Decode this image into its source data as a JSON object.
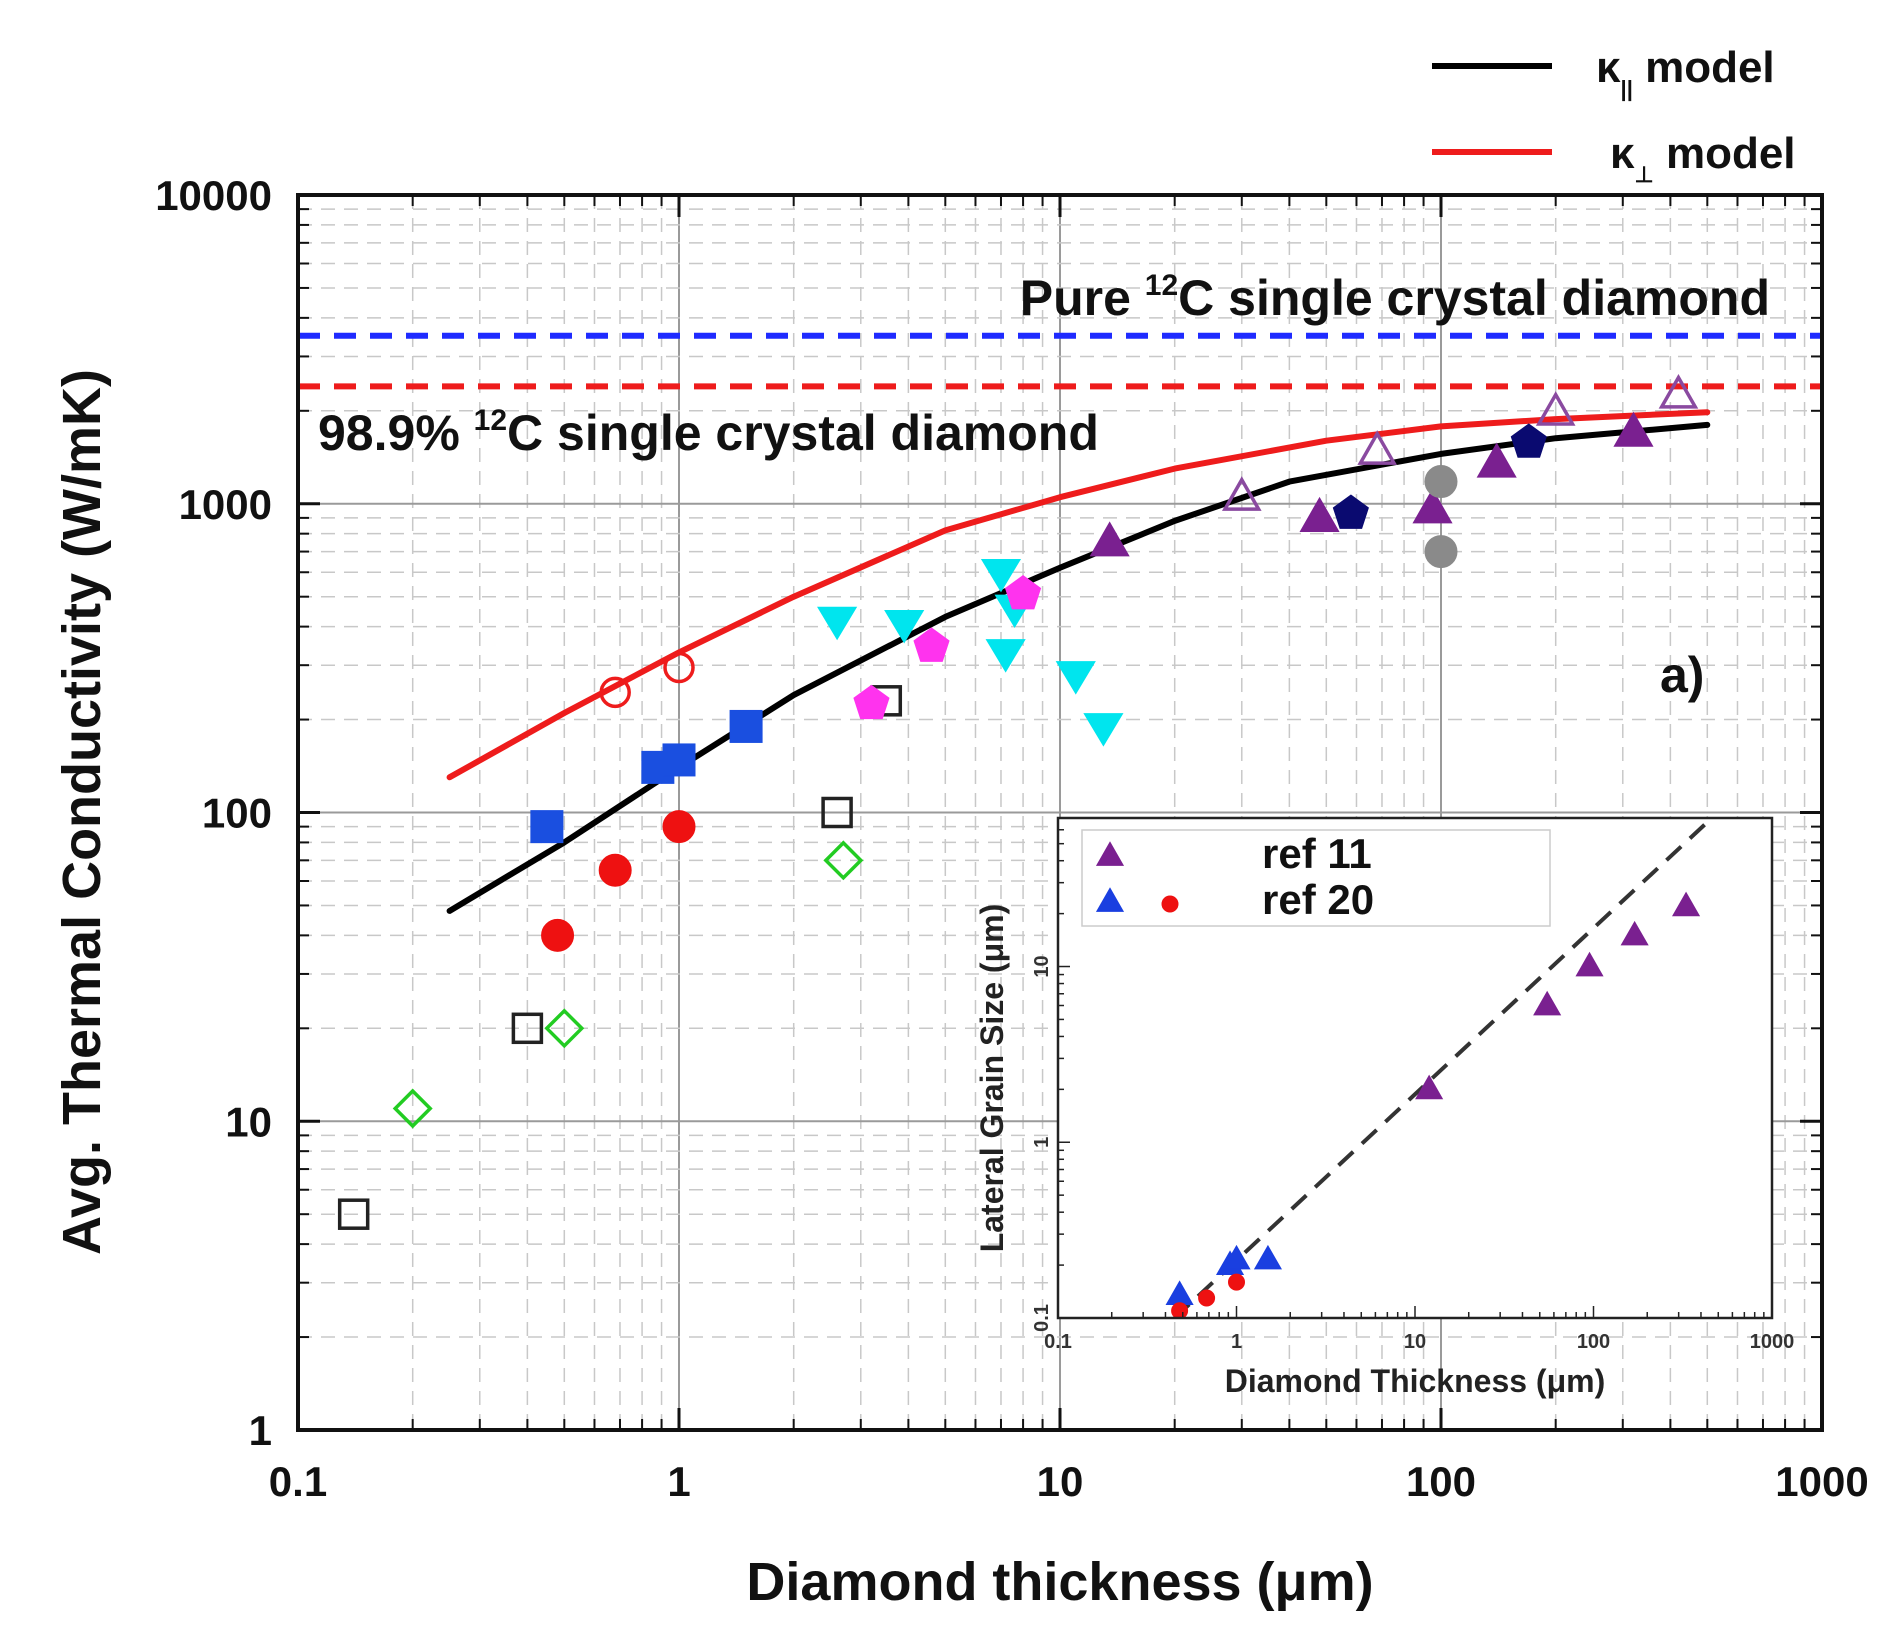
{
  "chart_data": [
    {
      "type": "scatter",
      "panel_label": "a)",
      "xlabel": "Diamond thickness (μm)",
      "ylabel": "Avg. Thermal Conductivity (W/mK)",
      "xscale": "log",
      "yscale": "log",
      "xlim": [
        0.1,
        1000
      ],
      "ylim": [
        1,
        10000
      ],
      "x_ticks": [
        "0.1",
        "1",
        "10",
        "100",
        "1000"
      ],
      "y_ticks": [
        "1",
        "10",
        "100",
        "1000",
        "10000"
      ],
      "grid": true,
      "legend_position": "top-right, above plot",
      "legend": [
        {
          "symbol": "κ",
          "subscript": "||",
          "suffix": " model",
          "color": "#000000"
        },
        {
          "symbol": "κ",
          "subscript": "⊥",
          "suffix": " model",
          "color": "#ee1c1c"
        }
      ],
      "reference_lines": [
        {
          "value": 3500,
          "color": "#1f2bff",
          "label_prefix": "Pure ",
          "label_sup": "12",
          "label_suffix": "C single crystal diamond"
        },
        {
          "value": 2400,
          "color": "#ee1c1c",
          "label_prefix": "98.9% ",
          "label_sup": "12",
          "label_suffix": "C single crystal diamond"
        }
      ],
      "model_lines": [
        {
          "name": "κ|| model",
          "color": "#000000",
          "x": [
            0.25,
            0.5,
            1,
            2,
            5,
            10,
            20,
            40,
            100,
            200,
            500
          ],
          "y": [
            48,
            80,
            140,
            240,
            430,
            620,
            880,
            1180,
            1450,
            1630,
            1800
          ]
        },
        {
          "name": "κ⊥ model",
          "color": "#ee1c1c",
          "x": [
            0.25,
            0.5,
            1,
            2,
            5,
            10,
            20,
            50,
            100,
            200,
            500
          ],
          "y": [
            130,
            210,
            330,
            500,
            820,
            1050,
            1300,
            1600,
            1780,
            1880,
            1980
          ]
        }
      ],
      "series": [
        {
          "name": "open squares",
          "marker": "square-open",
          "color": "#222222",
          "points": [
            [
              0.14,
              5
            ],
            [
              0.4,
              20
            ],
            [
              2.6,
              100
            ],
            [
              3.5,
              230
            ]
          ]
        },
        {
          "name": "open diamonds",
          "marker": "diamond-open",
          "color": "#22cc22",
          "points": [
            [
              0.2,
              11
            ],
            [
              0.5,
              20
            ],
            [
              2.7,
              70
            ]
          ]
        },
        {
          "name": "filled red circles",
          "marker": "circle",
          "color": "#ee1111",
          "points": [
            [
              0.48,
              40
            ],
            [
              0.68,
              65
            ],
            [
              1.0,
              90
            ]
          ]
        },
        {
          "name": "open red circles",
          "marker": "circle-open",
          "color": "#ee1c1c",
          "points": [
            [
              0.68,
              245
            ],
            [
              1.0,
              295
            ]
          ]
        },
        {
          "name": "blue squares",
          "marker": "square",
          "color": "#1a4fe0",
          "points": [
            [
              0.45,
              90
            ],
            [
              0.88,
              140
            ],
            [
              1.0,
              148
            ],
            [
              1.5,
              190
            ]
          ]
        },
        {
          "name": "cyan down triangles",
          "marker": "triangle-down",
          "color": "#00e5ee",
          "points": [
            [
              2.6,
              420
            ],
            [
              3.9,
              410
            ],
            [
              7.0,
              600
            ],
            [
              7.6,
              460
            ],
            [
              7.2,
              330
            ],
            [
              11.0,
              280
            ],
            [
              13.0,
              190
            ]
          ]
        },
        {
          "name": "magenta pentagons",
          "marker": "pentagon",
          "color": "#ff33ee",
          "points": [
            [
              3.2,
              225
            ],
            [
              4.6,
              345
            ],
            [
              8.0,
              510
            ]
          ]
        },
        {
          "name": "purple triangles",
          "marker": "triangle",
          "color": "#7a2090",
          "points": [
            [
              13.5,
              750
            ],
            [
              48,
              900
            ],
            [
              95,
              960
            ],
            [
              140,
              1350
            ],
            [
              320,
              1700
            ]
          ]
        },
        {
          "name": "open purple triangles",
          "marker": "triangle-open",
          "color": "#8a4aa0",
          "points": [
            [
              30,
              1050
            ],
            [
              68,
              1480
            ],
            [
              200,
              1980
            ],
            [
              420,
              2250
            ]
          ]
        },
        {
          "name": "navy pentagons",
          "marker": "pentagon",
          "color": "#0a0a70",
          "points": [
            [
              58,
              930
            ],
            [
              170,
              1580
            ]
          ]
        },
        {
          "name": "gray circles",
          "marker": "circle",
          "color": "#8a8a8a",
          "points": [
            [
              100,
              1180
            ],
            [
              100,
              700
            ]
          ]
        }
      ],
      "annotations": [
        "a)"
      ]
    },
    {
      "type": "scatter",
      "subtitle": "inset",
      "xlabel": "Diamond Thickness (μm)",
      "ylabel": "Lateral Grain Size (μm)",
      "xscale": "log",
      "yscale": "log",
      "xlim": [
        0.1,
        1000
      ],
      "ylim": [
        0.1,
        70
      ],
      "x_ticks": [
        "0.1",
        "1",
        "10",
        "100",
        "1000"
      ],
      "y_ticks": [
        "0.1",
        "1",
        "10"
      ],
      "legend_position": "top-left",
      "legend": [
        {
          "label": "ref 11",
          "markers": [
            {
              "marker": "triangle",
              "color": "#7a2090"
            }
          ]
        },
        {
          "label": "ref 20",
          "markers": [
            {
              "marker": "triangle",
              "color": "#1a3fe0"
            },
            {
              "marker": "circle",
              "color": "#ee1111"
            }
          ]
        }
      ],
      "fit_line": {
        "style": "dashed",
        "color": "#333333",
        "x": [
          0.45,
          600
        ],
        "y": [
          0.1,
          90
        ]
      },
      "series": [
        {
          "name": "ref 11",
          "marker": "triangle",
          "color": "#7a2090",
          "points": [
            [
              12,
              2.0
            ],
            [
              55,
              6.0
            ],
            [
              95,
              10.0
            ],
            [
              170,
              15.0
            ],
            [
              330,
              22.0
            ]
          ]
        },
        {
          "name": "ref 20 triangles",
          "marker": "triangle",
          "color": "#1a3fe0",
          "points": [
            [
              0.48,
              0.135
            ],
            [
              0.92,
              0.2
            ],
            [
              1.0,
              0.215
            ],
            [
              1.5,
              0.215
            ]
          ]
        },
        {
          "name": "ref 20 circles",
          "marker": "circle",
          "color": "#ee1111",
          "points": [
            [
              0.48,
              0.11
            ],
            [
              0.68,
              0.13
            ],
            [
              1.0,
              0.16
            ]
          ]
        }
      ]
    }
  ]
}
